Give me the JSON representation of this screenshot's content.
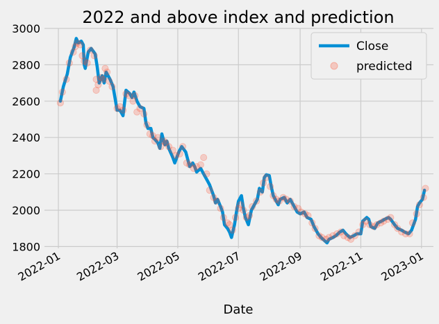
{
  "chart_data": {
    "type": "line",
    "title": "2022 and above index and prediction",
    "xlabel": "Date",
    "ylabel": "",
    "x_ticks": [
      "2022-01",
      "2022-03",
      "2022-05",
      "2022-07",
      "2022-09",
      "2022-11",
      "2023-01"
    ],
    "y_ticks": [
      1800,
      2000,
      2200,
      2400,
      2600,
      2800,
      3000
    ],
    "xlim": [
      "2021-12-18",
      "2023-01-13"
    ],
    "ylim": [
      1790,
      3000
    ],
    "grid": true,
    "legend_position": "top-right",
    "series": [
      {
        "name": "Close",
        "kind": "line",
        "color": "#008fd5",
        "points": [
          [
            "2022-01-03",
            2600
          ],
          [
            "2022-01-06",
            2680
          ],
          [
            "2022-01-10",
            2750
          ],
          [
            "2022-01-13",
            2840
          ],
          [
            "2022-01-17",
            2900
          ],
          [
            "2022-01-19",
            2945
          ],
          [
            "2022-01-21",
            2920
          ],
          [
            "2022-01-24",
            2930
          ],
          [
            "2022-01-26",
            2910
          ],
          [
            "2022-01-27",
            2800
          ],
          [
            "2022-01-28",
            2780
          ],
          [
            "2022-01-31",
            2870
          ],
          [
            "2022-02-03",
            2890
          ],
          [
            "2022-02-07",
            2860
          ],
          [
            "2022-02-09",
            2790
          ],
          [
            "2022-02-11",
            2700
          ],
          [
            "2022-02-14",
            2740
          ],
          [
            "2022-02-16",
            2700
          ],
          [
            "2022-02-18",
            2760
          ],
          [
            "2022-02-22",
            2720
          ],
          [
            "2022-02-25",
            2680
          ],
          [
            "2022-03-01",
            2550
          ],
          [
            "2022-03-04",
            2550
          ],
          [
            "2022-03-07",
            2520
          ],
          [
            "2022-03-10",
            2660
          ],
          [
            "2022-03-14",
            2640
          ],
          [
            "2022-03-16",
            2620
          ],
          [
            "2022-03-18",
            2650
          ],
          [
            "2022-03-21",
            2600
          ],
          [
            "2022-03-24",
            2570
          ],
          [
            "2022-03-28",
            2560
          ],
          [
            "2022-03-30",
            2480
          ],
          [
            "2022-04-01",
            2450
          ],
          [
            "2022-04-04",
            2450
          ],
          [
            "2022-04-06",
            2400
          ],
          [
            "2022-04-08",
            2390
          ],
          [
            "2022-04-11",
            2370
          ],
          [
            "2022-04-13",
            2340
          ],
          [
            "2022-04-15",
            2420
          ],
          [
            "2022-04-18",
            2360
          ],
          [
            "2022-04-20",
            2380
          ],
          [
            "2022-04-22",
            2340
          ],
          [
            "2022-04-26",
            2290
          ],
          [
            "2022-04-28",
            2260
          ],
          [
            "2022-05-02",
            2320
          ],
          [
            "2022-05-05",
            2350
          ],
          [
            "2022-05-09",
            2320
          ],
          [
            "2022-05-11",
            2280
          ],
          [
            "2022-05-13",
            2240
          ],
          [
            "2022-05-16",
            2260
          ],
          [
            "2022-05-18",
            2240
          ],
          [
            "2022-05-20",
            2210
          ],
          [
            "2022-05-24",
            2230
          ],
          [
            "2022-05-26",
            2210
          ],
          [
            "2022-05-31",
            2160
          ],
          [
            "2022-06-02",
            2140
          ],
          [
            "2022-06-06",
            2080
          ],
          [
            "2022-06-08",
            2040
          ],
          [
            "2022-06-10",
            2060
          ],
          [
            "2022-06-13",
            2020
          ],
          [
            "2022-06-15",
            1990
          ],
          [
            "2022-06-17",
            1920
          ],
          [
            "2022-06-20",
            1900
          ],
          [
            "2022-06-22",
            1880
          ],
          [
            "2022-06-24",
            1850
          ],
          [
            "2022-06-27",
            1920
          ],
          [
            "2022-06-29",
            1990
          ],
          [
            "2022-07-01",
            2050
          ],
          [
            "2022-07-04",
            2080
          ],
          [
            "2022-07-06",
            2010
          ],
          [
            "2022-07-08",
            1960
          ],
          [
            "2022-07-11",
            1920
          ],
          [
            "2022-07-14",
            2000
          ],
          [
            "2022-07-18",
            2040
          ],
          [
            "2022-07-20",
            2060
          ],
          [
            "2022-07-22",
            2120
          ],
          [
            "2022-07-25",
            2100
          ],
          [
            "2022-07-27",
            2180
          ],
          [
            "2022-07-29",
            2195
          ],
          [
            "2022-08-01",
            2190
          ],
          [
            "2022-08-03",
            2130
          ],
          [
            "2022-08-05",
            2080
          ],
          [
            "2022-08-08",
            2050
          ],
          [
            "2022-08-10",
            2030
          ],
          [
            "2022-08-12",
            2060
          ],
          [
            "2022-08-16",
            2070
          ],
          [
            "2022-08-19",
            2040
          ],
          [
            "2022-08-22",
            2060
          ],
          [
            "2022-08-25",
            2030
          ],
          [
            "2022-08-29",
            1990
          ],
          [
            "2022-09-01",
            1980
          ],
          [
            "2022-09-05",
            1990
          ],
          [
            "2022-09-08",
            1960
          ],
          [
            "2022-09-12",
            1950
          ],
          [
            "2022-09-15",
            1910
          ],
          [
            "2022-09-19",
            1870
          ],
          [
            "2022-09-22",
            1850
          ],
          [
            "2022-09-26",
            1830
          ],
          [
            "2022-09-28",
            1820
          ],
          [
            "2022-09-30",
            1840
          ],
          [
            "2022-10-04",
            1850
          ],
          [
            "2022-10-07",
            1860
          ],
          [
            "2022-10-11",
            1880
          ],
          [
            "2022-10-14",
            1890
          ],
          [
            "2022-10-17",
            1870
          ],
          [
            "2022-10-19",
            1860
          ],
          [
            "2022-10-21",
            1850
          ],
          [
            "2022-10-25",
            1860
          ],
          [
            "2022-10-28",
            1870
          ],
          [
            "2022-11-01",
            1870
          ],
          [
            "2022-11-03",
            1940
          ],
          [
            "2022-11-07",
            1960
          ],
          [
            "2022-11-09",
            1950
          ],
          [
            "2022-11-11",
            1910
          ],
          [
            "2022-11-15",
            1900
          ],
          [
            "2022-11-18",
            1930
          ],
          [
            "2022-11-22",
            1940
          ],
          [
            "2022-11-25",
            1950
          ],
          [
            "2022-11-29",
            1960
          ],
          [
            "2022-12-01",
            1950
          ],
          [
            "2022-12-05",
            1920
          ],
          [
            "2022-12-08",
            1900
          ],
          [
            "2022-12-12",
            1890
          ],
          [
            "2022-12-15",
            1880
          ],
          [
            "2022-12-19",
            1870
          ],
          [
            "2022-12-22",
            1890
          ],
          [
            "2022-12-26",
            1950
          ],
          [
            "2022-12-28",
            2020
          ],
          [
            "2022-12-30",
            2040
          ],
          [
            "2023-01-02",
            2060
          ],
          [
            "2023-01-04",
            2110
          ]
        ]
      },
      {
        "name": "predicted",
        "kind": "scatter",
        "color": "#fc4f30",
        "points": [
          [
            "2022-01-03",
            2590
          ],
          [
            "2022-01-05",
            2650
          ],
          [
            "2022-01-09",
            2720
          ],
          [
            "2022-01-12",
            2810
          ],
          [
            "2022-01-16",
            2870
          ],
          [
            "2022-01-18",
            2900
          ],
          [
            "2022-01-20",
            2920
          ],
          [
            "2022-01-23",
            2910
          ],
          [
            "2022-01-25",
            2850
          ],
          [
            "2022-01-27",
            2820
          ],
          [
            "2022-01-30",
            2810
          ],
          [
            "2022-02-02",
            2880
          ],
          [
            "2022-02-06",
            2850
          ],
          [
            "2022-02-08",
            2720
          ],
          [
            "2022-02-08",
            2660
          ],
          [
            "2022-02-10",
            2690
          ],
          [
            "2022-02-13",
            2730
          ],
          [
            "2022-02-15",
            2720
          ],
          [
            "2022-02-17",
            2780
          ],
          [
            "2022-02-19",
            2760
          ],
          [
            "2022-02-21",
            2710
          ],
          [
            "2022-02-24",
            2680
          ],
          [
            "2022-03-01",
            2560
          ],
          [
            "2022-03-04",
            2570
          ],
          [
            "2022-03-07",
            2550
          ],
          [
            "2022-03-10",
            2640
          ],
          [
            "2022-03-13",
            2630
          ],
          [
            "2022-03-17",
            2600
          ],
          [
            "2022-03-19",
            2630
          ],
          [
            "2022-03-21",
            2540
          ],
          [
            "2022-03-24",
            2560
          ],
          [
            "2022-03-28",
            2530
          ],
          [
            "2022-03-31",
            2470
          ],
          [
            "2022-04-03",
            2420
          ],
          [
            "2022-04-06",
            2410
          ],
          [
            "2022-04-08",
            2380
          ],
          [
            "2022-04-11",
            2400
          ],
          [
            "2022-04-14",
            2350
          ],
          [
            "2022-04-17",
            2380
          ],
          [
            "2022-04-19",
            2370
          ],
          [
            "2022-04-22",
            2350
          ],
          [
            "2022-04-26",
            2330
          ],
          [
            "2022-04-29",
            2300
          ],
          [
            "2022-05-03",
            2310
          ],
          [
            "2022-05-06",
            2350
          ],
          [
            "2022-05-10",
            2260
          ],
          [
            "2022-05-13",
            2250
          ],
          [
            "2022-05-17",
            2230
          ],
          [
            "2022-05-20",
            2240
          ],
          [
            "2022-05-24",
            2250
          ],
          [
            "2022-05-27",
            2290
          ],
          [
            "2022-05-30",
            2200
          ],
          [
            "2022-06-02",
            2110
          ],
          [
            "2022-06-06",
            2070
          ],
          [
            "2022-06-09",
            2050
          ],
          [
            "2022-06-13",
            2010
          ],
          [
            "2022-06-16",
            1960
          ],
          [
            "2022-06-20",
            1930
          ],
          [
            "2022-06-22",
            1920
          ],
          [
            "2022-06-25",
            1890
          ],
          [
            "2022-06-28",
            1960
          ],
          [
            "2022-07-01",
            2010
          ],
          [
            "2022-07-03",
            2030
          ],
          [
            "2022-07-06",
            2000
          ],
          [
            "2022-07-09",
            1960
          ],
          [
            "2022-07-12",
            1970
          ],
          [
            "2022-07-15",
            2020
          ],
          [
            "2022-07-19",
            2050
          ],
          [
            "2022-07-23",
            2100
          ],
          [
            "2022-07-26",
            2150
          ],
          [
            "2022-07-29",
            2180
          ],
          [
            "2022-08-02",
            2130
          ],
          [
            "2022-08-05",
            2080
          ],
          [
            "2022-08-08",
            2060
          ],
          [
            "2022-08-11",
            2050
          ],
          [
            "2022-08-15",
            2070
          ],
          [
            "2022-08-18",
            2060
          ],
          [
            "2022-08-22",
            2050
          ],
          [
            "2022-08-26",
            2020
          ],
          [
            "2022-08-30",
            2010
          ],
          [
            "2022-09-02",
            1990
          ],
          [
            "2022-09-06",
            1980
          ],
          [
            "2022-09-09",
            1970
          ],
          [
            "2022-09-13",
            1930
          ],
          [
            "2022-09-16",
            1900
          ],
          [
            "2022-09-20",
            1860
          ],
          [
            "2022-09-23",
            1850
          ],
          [
            "2022-09-27",
            1840
          ],
          [
            "2022-09-30",
            1850
          ],
          [
            "2022-10-04",
            1860
          ],
          [
            "2022-10-08",
            1870
          ],
          [
            "2022-10-12",
            1880
          ],
          [
            "2022-10-15",
            1860
          ],
          [
            "2022-10-19",
            1850
          ],
          [
            "2022-10-22",
            1840
          ],
          [
            "2022-10-26",
            1860
          ],
          [
            "2022-10-30",
            1880
          ],
          [
            "2022-11-03",
            1920
          ],
          [
            "2022-11-06",
            1940
          ],
          [
            "2022-11-10",
            1920
          ],
          [
            "2022-11-14",
            1910
          ],
          [
            "2022-11-17",
            1920
          ],
          [
            "2022-11-21",
            1930
          ],
          [
            "2022-11-24",
            1940
          ],
          [
            "2022-11-28",
            1950
          ],
          [
            "2022-12-01",
            1960
          ],
          [
            "2022-12-05",
            1920
          ],
          [
            "2022-12-08",
            1900
          ],
          [
            "2022-12-12",
            1880
          ],
          [
            "2022-12-16",
            1870
          ],
          [
            "2022-12-20",
            1870
          ],
          [
            "2022-12-23",
            1930
          ],
          [
            "2022-12-27",
            1980
          ],
          [
            "2022-12-30",
            2030
          ],
          [
            "2023-01-03",
            2070
          ],
          [
            "2023-01-05",
            2120
          ]
        ]
      }
    ]
  }
}
